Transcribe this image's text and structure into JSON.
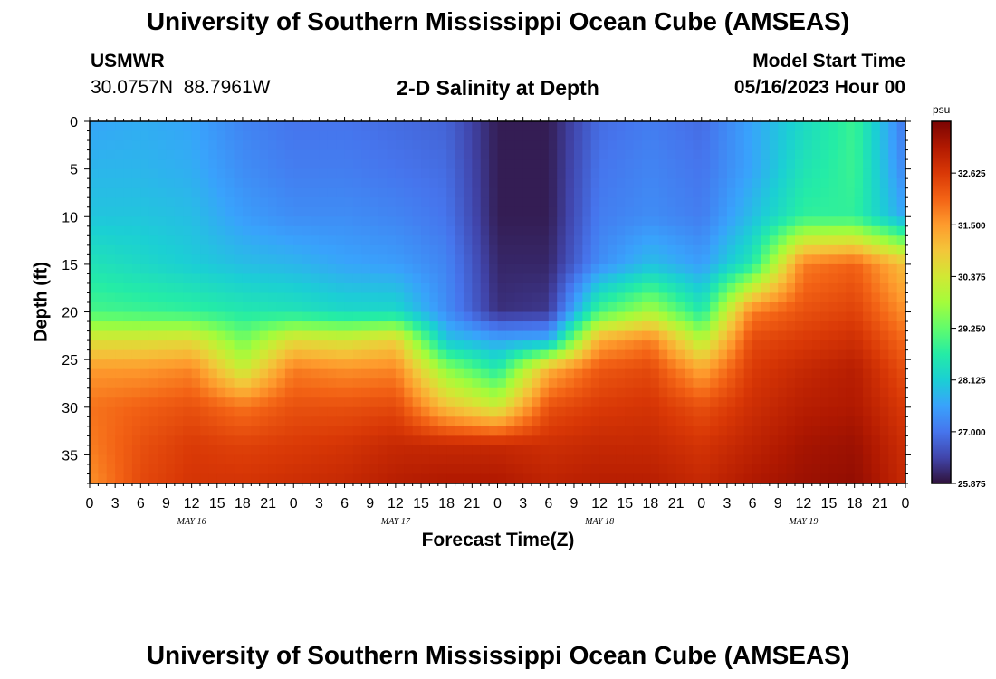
{
  "header": {
    "title": "University of Southern Mississippi Ocean Cube (AMSEAS)",
    "station_id": "USMWR",
    "station_coords": "30.0757N  88.7961W",
    "plot_title": "2-D Salinity at Depth",
    "model_label": "Model Start Time",
    "model_start": "05/16/2023 Hour 00"
  },
  "footer": {
    "title": "University of Southern Mississippi Ocean Cube (AMSEAS)"
  },
  "chart_data": {
    "type": "heatmap",
    "title": "2-D Salinity at Depth",
    "xlabel": "Forecast Time(Z)",
    "ylabel": "Depth (ft)",
    "x_ticks": [
      "0",
      "3",
      "6",
      "9",
      "12",
      "15",
      "18",
      "21",
      "0",
      "3",
      "6",
      "9",
      "12",
      "15",
      "18",
      "21",
      "0",
      "3",
      "6",
      "9",
      "12",
      "15",
      "18",
      "21",
      "0",
      "3",
      "6",
      "9",
      "12",
      "15",
      "18",
      "21",
      "0"
    ],
    "x_range_hours": [
      0,
      96
    ],
    "day_labels": [
      {
        "label": "MAY 16",
        "hour": 12
      },
      {
        "label": "MAY 17",
        "hour": 36
      },
      {
        "label": "MAY 18",
        "hour": 60
      },
      {
        "label": "MAY 19",
        "hour": 84
      }
    ],
    "y_ticks": [
      0,
      5,
      10,
      15,
      20,
      25,
      30,
      35
    ],
    "y_range_ft": [
      0,
      38
    ],
    "colorbar": {
      "unit": "psu",
      "min": 25.875,
      "max": 33.75,
      "ticks": [
        "25.875",
        "27.000",
        "28.125",
        "29.250",
        "30.375",
        "31.500",
        "32.625"
      ],
      "colors": [
        "#30123b",
        "#4145ab",
        "#4675ed",
        "#39a2fc",
        "#1bcfd4",
        "#24eca6",
        "#61fc6c",
        "#a4fc3b",
        "#d1e834",
        "#f3c63a",
        "#fe9b2d",
        "#f36315",
        "#d93806",
        "#b11901",
        "#7a0403"
      ]
    },
    "hours": [
      0,
      6,
      12,
      18,
      24,
      30,
      36,
      42,
      48,
      54,
      60,
      66,
      72,
      78,
      84,
      90,
      96
    ],
    "depths_ft": [
      0,
      5,
      10,
      15,
      20,
      23,
      26,
      30,
      34,
      38
    ],
    "salinity_psu": [
      [
        27.6,
        27.7,
        27.6,
        27.2,
        27.0,
        27.0,
        26.9,
        26.8,
        26.0,
        26.0,
        26.9,
        27.1,
        26.9,
        27.6,
        28.3,
        28.9,
        27.0
      ],
      [
        27.8,
        27.8,
        27.7,
        27.3,
        27.1,
        27.1,
        27.0,
        26.9,
        26.0,
        26.0,
        27.0,
        27.2,
        27.0,
        27.6,
        28.5,
        28.9,
        27.2
      ],
      [
        28.0,
        28.0,
        27.9,
        27.5,
        27.3,
        27.3,
        27.2,
        27.0,
        26.0,
        26.0,
        27.1,
        27.3,
        27.1,
        27.9,
        28.8,
        28.8,
        27.6
      ],
      [
        28.5,
        28.3,
        28.1,
        27.9,
        27.8,
        27.6,
        27.5,
        27.2,
        26.1,
        26.1,
        27.3,
        27.9,
        27.5,
        28.6,
        31.8,
        32.1,
        31.0
      ],
      [
        29.0,
        28.9,
        28.8,
        28.6,
        28.5,
        28.3,
        28.3,
        27.3,
        26.2,
        26.3,
        29.0,
        29.9,
        28.6,
        31.8,
        32.3,
        32.5,
        31.6
      ],
      [
        30.5,
        30.5,
        30.6,
        29.4,
        30.6,
        30.4,
        30.8,
        28.0,
        27.6,
        27.7,
        31.3,
        31.8,
        30.0,
        32.4,
        32.6,
        32.8,
        32.0
      ],
      [
        31.5,
        31.5,
        31.7,
        30.2,
        31.8,
        31.6,
        31.7,
        29.6,
        28.6,
        31.2,
        32.2,
        32.4,
        31.3,
        32.6,
        32.9,
        33.1,
        32.3
      ],
      [
        31.9,
        32.1,
        32.3,
        31.9,
        32.3,
        32.3,
        32.4,
        31.0,
        30.3,
        32.3,
        32.6,
        32.7,
        32.3,
        32.8,
        33.1,
        33.2,
        32.6
      ],
      [
        31.8,
        32.3,
        32.6,
        32.5,
        32.6,
        32.7,
        32.9,
        32.9,
        32.9,
        32.8,
        32.9,
        32.9,
        32.7,
        33.0,
        33.3,
        33.4,
        32.8
      ],
      [
        31.6,
        32.4,
        32.7,
        32.7,
        32.8,
        32.9,
        33.1,
        33.2,
        33.2,
        33.0,
        33.1,
        33.1,
        32.9,
        33.2,
        33.4,
        33.5,
        32.9
      ]
    ]
  }
}
